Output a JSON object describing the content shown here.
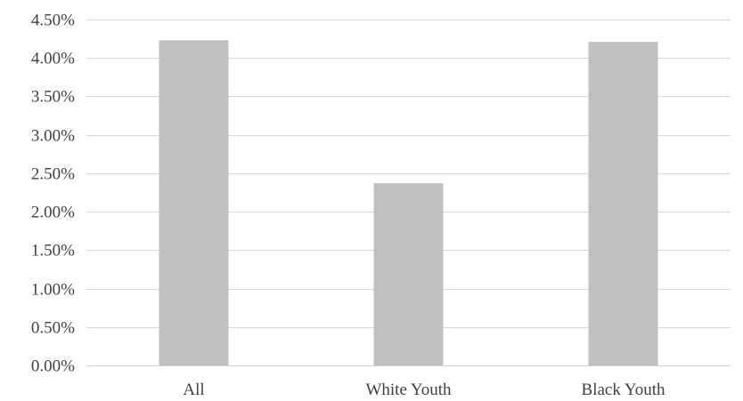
{
  "chart_data": {
    "type": "bar",
    "title": "",
    "xlabel": "",
    "ylabel": "",
    "categories": [
      "All",
      "White Youth",
      "Black Youth"
    ],
    "values": [
      4.23,
      2.37,
      4.21
    ],
    "value_unit": "%",
    "ylim": [
      0,
      4.5
    ],
    "yticks": [
      0,
      0.5,
      1.0,
      1.5,
      2.0,
      2.5,
      3.0,
      3.5,
      4.0,
      4.5
    ],
    "ytick_labels": [
      "0.00%",
      "0.50%",
      "1.00%",
      "1.50%",
      "2.00%",
      "2.50%",
      "3.00%",
      "3.50%",
      "4.00%",
      "4.50%"
    ],
    "grid": true,
    "legend": "none",
    "bar_color": "#bfbfbf",
    "grid_color": "#d9d9d9",
    "text_color": "#404040"
  }
}
